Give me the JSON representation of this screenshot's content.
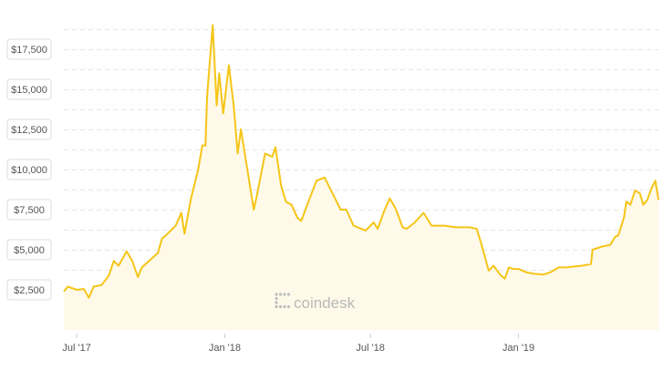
{
  "brand": {
    "name": "coindesk",
    "logo_icon": "coindesk-dots-icon"
  },
  "chart_data": {
    "type": "area",
    "title": "",
    "xlabel": "",
    "ylabel": "",
    "ylim": [
      0,
      19000
    ],
    "ytick_values": [
      2500,
      5000,
      7500,
      10000,
      12500,
      15000,
      17500
    ],
    "ytick_labels": [
      "$2,500",
      "$5,000",
      "$7,500",
      "$10,000",
      "$12,500",
      "$15,000",
      "$17,500"
    ],
    "xlim": [
      "2017-06-15",
      "2019-06-24"
    ],
    "xticks": [
      {
        "date": "2017-07-01",
        "label": "Jul '17"
      },
      {
        "date": "2018-01-01",
        "label": "Jan '18"
      },
      {
        "date": "2018-07-01",
        "label": "Jul '18"
      },
      {
        "date": "2019-01-01",
        "label": "Jan '19"
      }
    ],
    "grid": true,
    "line_color": "#f5c518",
    "fill_color": "#fef9e8",
    "series": [
      {
        "name": "",
        "x": [
          "2017-06-15",
          "2017-06-20",
          "2017-07-01",
          "2017-07-10",
          "2017-07-16",
          "2017-07-22",
          "2017-08-01",
          "2017-08-10",
          "2017-08-16",
          "2017-08-22",
          "2017-09-01",
          "2017-09-08",
          "2017-09-15",
          "2017-09-20",
          "2017-10-01",
          "2017-10-10",
          "2017-10-15",
          "2017-10-20",
          "2017-11-01",
          "2017-11-08",
          "2017-11-12",
          "2017-11-20",
          "2017-11-29",
          "2017-12-04",
          "2017-12-08",
          "2017-12-10",
          "2017-12-13",
          "2017-12-17",
          "2017-12-22",
          "2017-12-25",
          "2017-12-30",
          "2018-01-06",
          "2018-01-12",
          "2018-01-17",
          "2018-01-21",
          "2018-01-29",
          "2018-02-06",
          "2018-02-10",
          "2018-02-20",
          "2018-03-01",
          "2018-03-05",
          "2018-03-12",
          "2018-03-18",
          "2018-03-25",
          "2018-04-01",
          "2018-04-06",
          "2018-04-15",
          "2018-04-25",
          "2018-05-05",
          "2018-05-15",
          "2018-05-25",
          "2018-06-01",
          "2018-06-10",
          "2018-06-25",
          "2018-07-05",
          "2018-07-10",
          "2018-07-18",
          "2018-07-25",
          "2018-08-01",
          "2018-08-10",
          "2018-08-15",
          "2018-08-25",
          "2018-09-05",
          "2018-09-15",
          "2018-10-01",
          "2018-10-15",
          "2018-11-01",
          "2018-11-10",
          "2018-11-15",
          "2018-11-20",
          "2018-11-25",
          "2018-12-01",
          "2018-12-10",
          "2018-12-15",
          "2018-12-20",
          "2018-12-25",
          "2019-01-01",
          "2019-01-10",
          "2019-01-20",
          "2019-02-01",
          "2019-02-10",
          "2019-02-20",
          "2019-03-01",
          "2019-03-20",
          "2019-04-01",
          "2019-04-03",
          "2019-04-15",
          "2019-04-25",
          "2019-05-01",
          "2019-05-05",
          "2019-05-12",
          "2019-05-15",
          "2019-05-20",
          "2019-05-26",
          "2019-06-01",
          "2019-06-05",
          "2019-06-10",
          "2019-06-15",
          "2019-06-20",
          "2019-06-24"
        ],
        "values": [
          2400,
          2700,
          2500,
          2550,
          2000,
          2700,
          2800,
          3400,
          4300,
          4000,
          4900,
          4300,
          3300,
          3900,
          4400,
          4800,
          5700,
          5900,
          6500,
          7300,
          6000,
          8200,
          10000,
          11500,
          11500,
          14500,
          16500,
          19000,
          14000,
          16000,
          13500,
          16500,
          14000,
          11000,
          12500,
          10000,
          7500,
          8400,
          11000,
          10800,
          11400,
          9000,
          8000,
          7800,
          7000,
          6800,
          8000,
          9300,
          9500,
          8500,
          7500,
          7500,
          6500,
          6200,
          6700,
          6300,
          7400,
          8200,
          7600,
          6400,
          6300,
          6700,
          7300,
          6500,
          6500,
          6400,
          6400,
          6300,
          5500,
          4600,
          3700,
          4000,
          3400,
          3200,
          3900,
          3800,
          3800,
          3600,
          3500,
          3450,
          3600,
          3900,
          3900,
          4000,
          4100,
          5000,
          5200,
          5300,
          5800,
          5900,
          7000,
          8000,
          7800,
          8700,
          8500,
          7800,
          8100,
          8800,
          9300,
          8100
        ]
      }
    ]
  }
}
